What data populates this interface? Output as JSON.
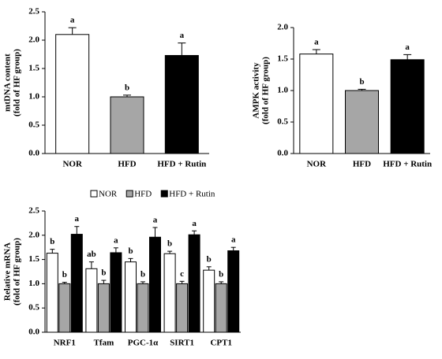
{
  "chart_data": [
    {
      "type": "bar",
      "ylabel": [
        "mtDNA content",
        "(fold of HF group)"
      ],
      "categories": [
        "NOR",
        "HFD",
        "HFD + Rutin"
      ],
      "values": [
        2.1,
        1.0,
        1.73
      ],
      "errors": [
        0.12,
        0.03,
        0.22
      ],
      "letters": [
        "a",
        "b",
        "a"
      ],
      "colors": [
        "#ffffff",
        "#a6a6a6",
        "#000000"
      ],
      "ylim": [
        0,
        2.5
      ],
      "yticks": [
        {
          "value": 0,
          "label": "0.0"
        },
        0.5,
        {
          "value": 1,
          "label": "1.0"
        },
        1.5,
        {
          "value": 2,
          "label": "2.0"
        },
        2.5
      ]
    },
    {
      "type": "bar",
      "ylabel": [
        "AMPK activity",
        "(fold of HF group)"
      ],
      "categories": [
        "NOR",
        "HFD",
        "HFD + Rutin"
      ],
      "values": [
        1.58,
        1.0,
        1.49
      ],
      "errors": [
        0.07,
        0.02,
        0.08
      ],
      "letters": [
        "a",
        "b",
        "a"
      ],
      "colors": [
        "#ffffff",
        "#a6a6a6",
        "#000000"
      ],
      "ylim": [
        0,
        2
      ],
      "yticks": [
        {
          "value": 0,
          "label": "0.0"
        },
        0.5,
        {
          "value": 1,
          "label": "1.0"
        },
        1.5,
        {
          "value": 2,
          "label": "2.0"
        }
      ]
    },
    {
      "type": "grouped_bar",
      "ylabel": [
        "Relative mRNA",
        "(fold of HF group)"
      ],
      "categories": [
        "NRF1",
        "Tfam",
        "PGC-1α",
        "SIRT1",
        "CPT1"
      ],
      "series": [
        {
          "name": "NOR",
          "color": "#ffffff",
          "values": [
            1.63,
            1.31,
            1.45,
            1.62,
            1.28
          ],
          "errors": [
            0.08,
            0.14,
            0.07,
            0.05,
            0.07
          ],
          "letters": [
            "b",
            "ab",
            "b",
            "b",
            "b"
          ]
        },
        {
          "name": "HFD",
          "color": "#a6a6a6",
          "values": [
            1.0,
            1.0,
            1.0,
            1.0,
            1.0
          ],
          "errors": [
            0.03,
            0.07,
            0.04,
            0.05,
            0.04
          ],
          "letters": [
            "b",
            "b",
            "b",
            "c",
            "b"
          ]
        },
        {
          "name": "HFD + Rutin",
          "color": "#000000",
          "values": [
            2.02,
            1.64,
            1.96,
            2.01,
            1.68
          ],
          "errors": [
            0.16,
            0.1,
            0.2,
            0.08,
            0.07
          ],
          "letters": [
            "a",
            "a",
            "a",
            "a",
            "a"
          ]
        }
      ],
      "ylim": [
        0,
        2.5
      ],
      "yticks": [
        {
          "value": 0,
          "label": "0.0"
        },
        0.5,
        {
          "value": 1,
          "label": "1.0"
        },
        1.5,
        {
          "value": 2,
          "label": "2.0"
        },
        2.5
      ]
    }
  ]
}
